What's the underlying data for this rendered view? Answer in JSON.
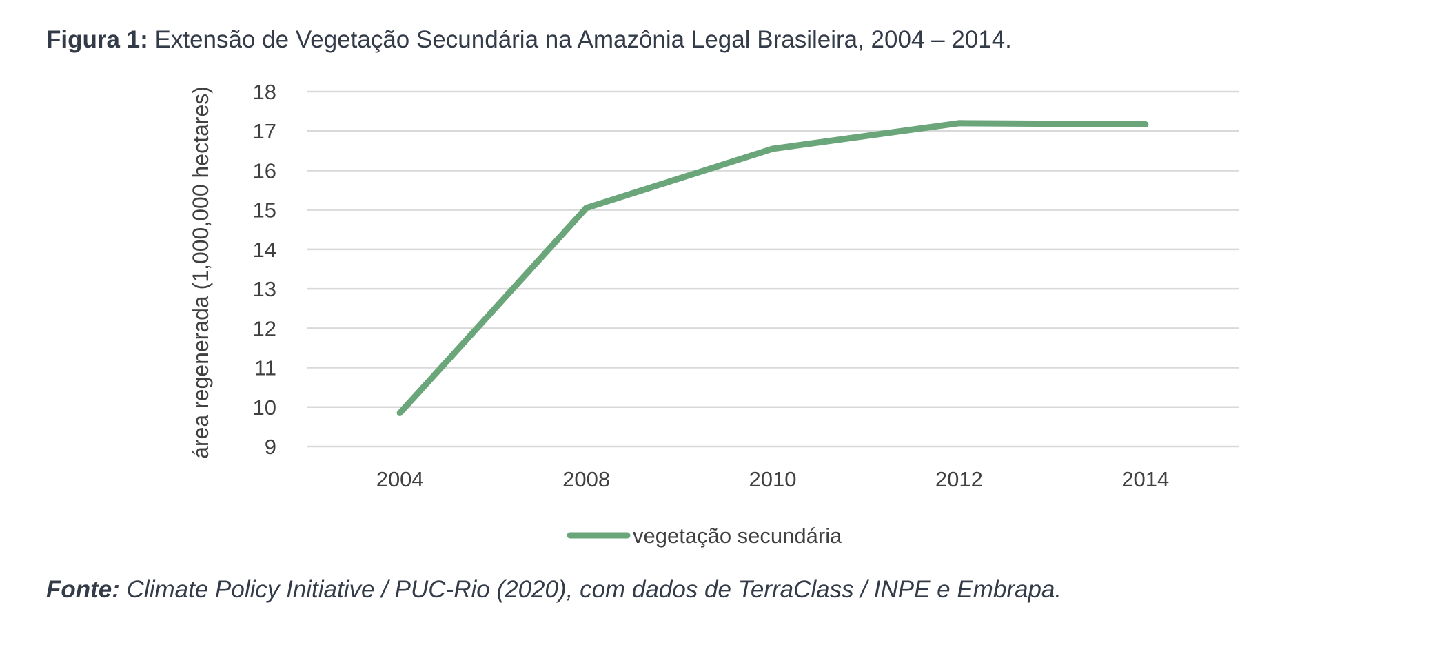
{
  "figure": {
    "label": "Figura 1:",
    "title": " Extensão de Vegetação Secundária na Amazônia Legal Brasileira, 2004 – 2014."
  },
  "source": {
    "label": "Fonte:",
    "text": " Climate Policy Initiative / PUC-Rio (2020), com dados de TerraClass / INPE e Embrapa."
  },
  "chart_data": {
    "type": "line",
    "title": "Extensão de Vegetação Secundária na Amazônia Legal Brasileira, 2004 – 2014.",
    "xlabel": "",
    "ylabel": "área regenerada (1,000,000 hectares)",
    "categories": [
      "2004",
      "2008",
      "2010",
      "2012",
      "2014"
    ],
    "series": [
      {
        "name": "vegetação secundária",
        "color": "#6aa67a",
        "values": [
          9.85,
          15.05,
          16.55,
          17.2,
          17.17
        ]
      }
    ],
    "ylim": [
      9,
      18
    ],
    "yticks": [
      9,
      10,
      11,
      12,
      13,
      14,
      15,
      16,
      17,
      18
    ],
    "grid": true,
    "gridColor": "#d9d9d9",
    "legend": "bottom"
  }
}
